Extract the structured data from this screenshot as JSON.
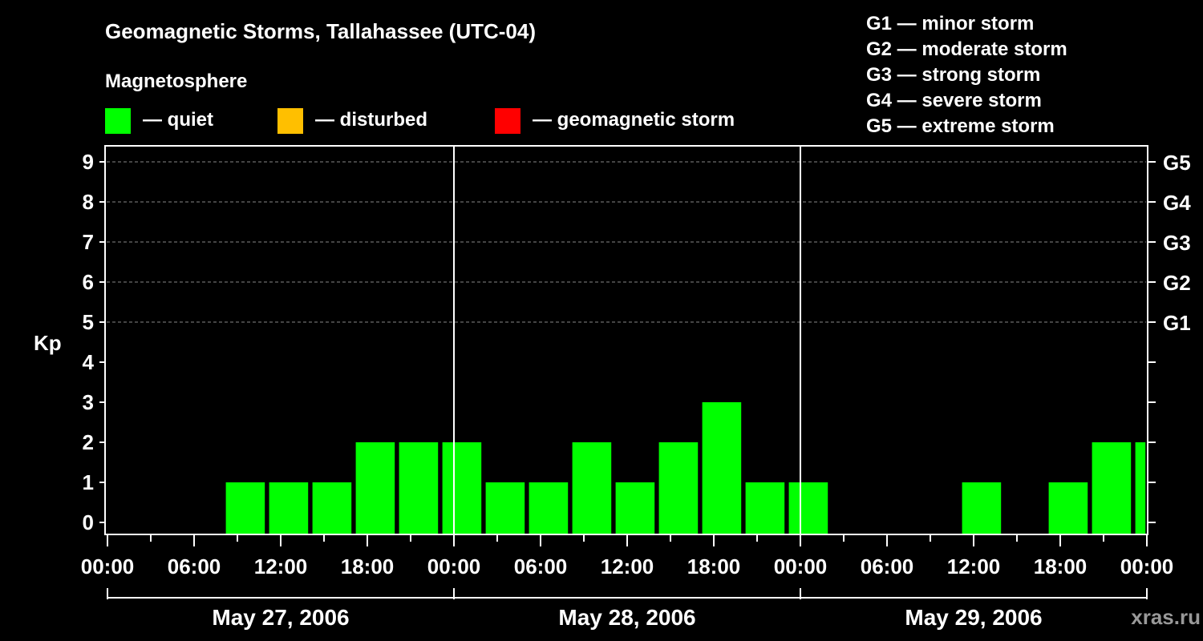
{
  "chart_data": {
    "type": "bar",
    "title": "Geomagnetic Storms, Tallahassee (UTC-04)",
    "legend_title": "Magnetosphere",
    "legend": [
      {
        "color": "#00ff00",
        "label": "— quiet"
      },
      {
        "color": "#ffbf00",
        "label": "— disturbed"
      },
      {
        "color": "#ff0000",
        "label": "— geomagnetic storm"
      }
    ],
    "storm_scale": [
      "G1 — minor storm",
      "G2 — moderate storm",
      "G3 — strong storm",
      "G4 — severe storm",
      "G5 — extreme storm"
    ],
    "ylabel": "Kp",
    "ylim": [
      0,
      9
    ],
    "yticks": [
      "0",
      "1",
      "2",
      "3",
      "4",
      "5",
      "6",
      "7",
      "8",
      "9"
    ],
    "right_ticks": [
      {
        "kp": 5,
        "label": "G1"
      },
      {
        "kp": 6,
        "label": "G2"
      },
      {
        "kp": 7,
        "label": "G3"
      },
      {
        "kp": 8,
        "label": "G4"
      },
      {
        "kp": 9,
        "label": "G5"
      }
    ],
    "grid_kp": [
      5,
      6,
      7,
      8,
      9
    ],
    "x_range_hours": [
      0,
      72
    ],
    "bar_hours": 3,
    "xticks": [
      {
        "h": 0,
        "label": "00:00"
      },
      {
        "h": 6,
        "label": "06:00"
      },
      {
        "h": 12,
        "label": "12:00"
      },
      {
        "h": 18,
        "label": "18:00"
      },
      {
        "h": 24,
        "label": "00:00"
      },
      {
        "h": 30,
        "label": "06:00"
      },
      {
        "h": 36,
        "label": "12:00"
      },
      {
        "h": 42,
        "label": "18:00"
      },
      {
        "h": 48,
        "label": "00:00"
      },
      {
        "h": 54,
        "label": "06:00"
      },
      {
        "h": 60,
        "label": "12:00"
      },
      {
        "h": 66,
        "label": "18:00"
      },
      {
        "h": 72,
        "label": "00:00"
      }
    ],
    "days": [
      "May 27, 2006",
      "May 28, 2006",
      "May 29, 2006"
    ],
    "bars": [
      {
        "start_h": 8.2,
        "end_h": 10.9,
        "kp": 1,
        "color": "#00ff00"
      },
      {
        "start_h": 11.2,
        "end_h": 13.9,
        "kp": 1,
        "color": "#00ff00"
      },
      {
        "start_h": 14.2,
        "end_h": 16.9,
        "kp": 1,
        "color": "#00ff00"
      },
      {
        "start_h": 17.2,
        "end_h": 19.9,
        "kp": 2,
        "color": "#00ff00"
      },
      {
        "start_h": 20.2,
        "end_h": 22.9,
        "kp": 2,
        "color": "#00ff00"
      },
      {
        "start_h": 23.2,
        "end_h": 25.9,
        "kp": 2,
        "color": "#00ff00"
      },
      {
        "start_h": 26.2,
        "end_h": 28.9,
        "kp": 1,
        "color": "#00ff00"
      },
      {
        "start_h": 29.2,
        "end_h": 31.9,
        "kp": 1,
        "color": "#00ff00"
      },
      {
        "start_h": 32.2,
        "end_h": 34.9,
        "kp": 2,
        "color": "#00ff00"
      },
      {
        "start_h": 35.2,
        "end_h": 37.9,
        "kp": 1,
        "color": "#00ff00"
      },
      {
        "start_h": 38.2,
        "end_h": 40.9,
        "kp": 2,
        "color": "#00ff00"
      },
      {
        "start_h": 41.2,
        "end_h": 43.9,
        "kp": 3,
        "color": "#00ff00"
      },
      {
        "start_h": 44.2,
        "end_h": 46.9,
        "kp": 1,
        "color": "#00ff00"
      },
      {
        "start_h": 47.2,
        "end_h": 49.9,
        "kp": 1,
        "color": "#00ff00"
      },
      {
        "start_h": 59.2,
        "end_h": 61.9,
        "kp": 1,
        "color": "#00ff00"
      },
      {
        "start_h": 65.2,
        "end_h": 67.9,
        "kp": 1,
        "color": "#00ff00"
      },
      {
        "start_h": 68.2,
        "end_h": 70.9,
        "kp": 2,
        "color": "#00ff00"
      },
      {
        "start_h": 71.2,
        "end_h": 71.9,
        "kp": 2,
        "color": "#00ff00"
      }
    ]
  },
  "watermark": "xras.ru"
}
